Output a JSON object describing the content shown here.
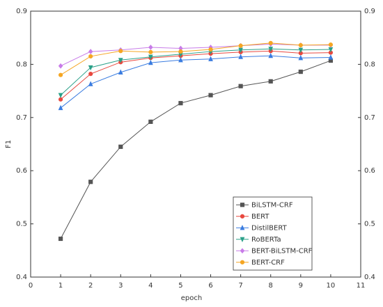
{
  "chart_data": {
    "type": "line",
    "x_label": "epoch",
    "y_label": "F1",
    "x": [
      1,
      2,
      3,
      4,
      5,
      6,
      7,
      8,
      9,
      10
    ],
    "xlim": [
      0,
      11
    ],
    "xticks": [
      0,
      1,
      2,
      3,
      4,
      5,
      6,
      7,
      8,
      9,
      10,
      11
    ],
    "ylim": [
      0.4,
      0.9
    ],
    "yticks": [
      0.4,
      0.5,
      0.6,
      0.7,
      0.8,
      0.9
    ],
    "y2lim": [
      0.4,
      0.9
    ],
    "y2ticks": [
      0.4,
      0.5,
      0.6,
      0.7,
      0.8,
      0.9
    ],
    "legend": "lower right",
    "series": [
      {
        "name": "BiLSTM-CRF",
        "color": "#555555",
        "marker": "square",
        "values": [
          0.472,
          0.579,
          0.645,
          0.692,
          0.727,
          0.742,
          0.759,
          0.768,
          0.786,
          0.807
        ]
      },
      {
        "name": "BERT",
        "color": "#e8483f",
        "marker": "circle",
        "values": [
          0.734,
          0.782,
          0.804,
          0.812,
          0.816,
          0.82,
          0.823,
          0.825,
          0.821,
          0.822
        ]
      },
      {
        "name": "DistilBERT",
        "color": "#3a7ce0",
        "marker": "triangle-up",
        "values": [
          0.718,
          0.763,
          0.785,
          0.803,
          0.808,
          0.81,
          0.814,
          0.816,
          0.812,
          0.813
        ]
      },
      {
        "name": "RoBERTa",
        "color": "#2aa088",
        "marker": "triangle-down",
        "values": [
          0.742,
          0.794,
          0.808,
          0.814,
          0.819,
          0.824,
          0.827,
          0.829,
          0.827,
          0.828
        ]
      },
      {
        "name": "BERT-BiLSTM-CRF",
        "color": "#c87ce8",
        "marker": "diamond",
        "values": [
          0.797,
          0.824,
          0.827,
          0.832,
          0.83,
          0.832,
          0.835,
          0.838,
          0.836,
          0.836
        ]
      },
      {
        "name": "BERT-CRF",
        "color": "#f5a623",
        "marker": "circle",
        "values": [
          0.78,
          0.815,
          0.825,
          0.823,
          0.824,
          0.828,
          0.835,
          0.84,
          0.836,
          0.837
        ]
      }
    ]
  }
}
